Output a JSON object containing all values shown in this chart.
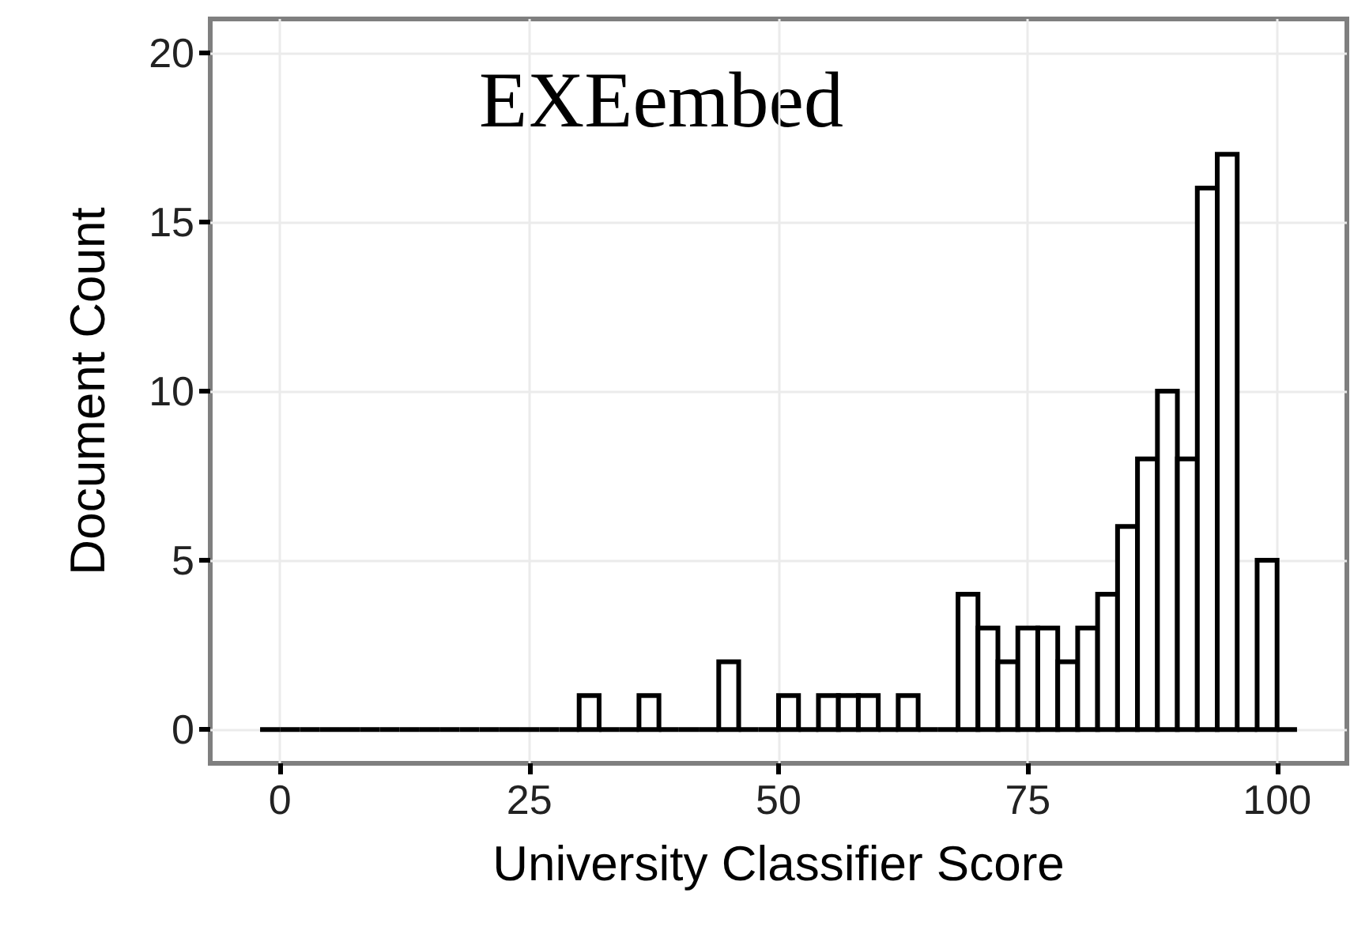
{
  "chart_data": {
    "type": "histogram",
    "xlabel": "University Classifier Score",
    "ylabel": "Document Count",
    "annotations": [
      "EXEembed"
    ],
    "bins": [
      -2,
      0,
      2,
      4,
      6,
      8,
      10,
      12,
      14,
      16,
      18,
      20,
      22,
      24,
      26,
      28,
      30,
      32,
      34,
      36,
      38,
      40,
      42,
      44,
      46,
      48,
      50,
      52,
      54,
      56,
      58,
      60,
      62,
      64,
      66,
      68,
      70,
      72,
      74,
      76,
      78,
      80,
      82,
      84,
      86,
      88,
      90,
      92,
      94,
      96,
      98,
      100,
      102
    ],
    "values": [
      0,
      0,
      0,
      0,
      0,
      0,
      0,
      0,
      0,
      0,
      0,
      0,
      0,
      0,
      0,
      0,
      1,
      0,
      0,
      1,
      0,
      0,
      0,
      2,
      0,
      0,
      1,
      0,
      1,
      1,
      1,
      0,
      1,
      0,
      0,
      4,
      3,
      2,
      3,
      3,
      2,
      3,
      4,
      6,
      8,
      10,
      8,
      16,
      17,
      0,
      5,
      0
    ],
    "xlim": [
      -7,
      107
    ],
    "xticks": [
      0,
      25,
      50,
      75,
      100
    ],
    "ylim": [
      -1,
      21
    ],
    "yticks": [
      0,
      5,
      10,
      15,
      20
    ],
    "grid": true
  }
}
